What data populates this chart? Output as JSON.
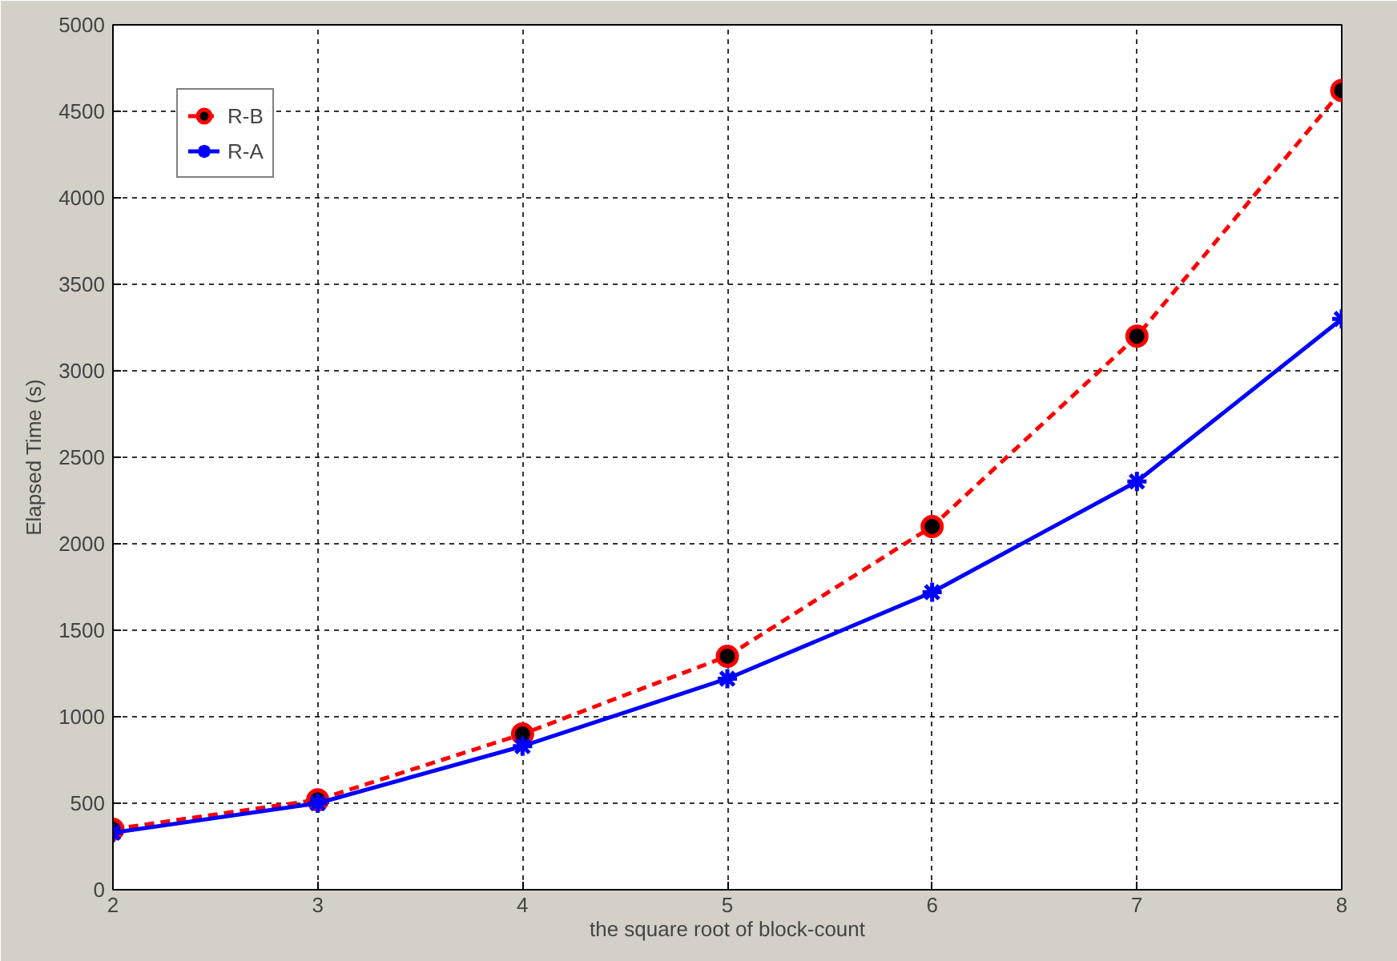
{
  "chart_data": {
    "type": "line",
    "xlabel": "the square root of block-count",
    "ylabel": "Elapsed Time (s)",
    "x": [
      2,
      3,
      4,
      5,
      6,
      7,
      8
    ],
    "series": [
      {
        "name": "R-B",
        "color": "#ff0000",
        "marker": "circle",
        "line_style": "dashed",
        "values": [
          350,
          520,
          900,
          1350,
          2100,
          3200,
          4620
        ]
      },
      {
        "name": "R-A",
        "color": "#0000ff",
        "marker": "cross",
        "line_style": "solid",
        "values": [
          330,
          500,
          830,
          1220,
          1720,
          2360,
          3300
        ]
      }
    ],
    "xlim": [
      2,
      8
    ],
    "ylim": [
      0,
      5000
    ],
    "xticks": [
      2,
      3,
      4,
      5,
      6,
      7,
      8
    ],
    "yticks": [
      0,
      500,
      1000,
      1500,
      2000,
      2500,
      3000,
      3500,
      4000,
      4500,
      5000
    ],
    "grid": true,
    "legend": "top left"
  }
}
